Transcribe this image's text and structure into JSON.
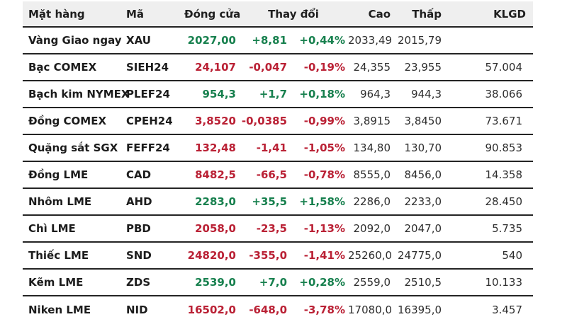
{
  "colors": {
    "up": "#17804e",
    "down": "#ba2135",
    "header_bg": "#efefef",
    "border": "#242424",
    "text": "#1f1f1f"
  },
  "table": {
    "headers": {
      "item": "Mặt hàng",
      "code": "Mã",
      "close": "Đóng cửa",
      "change": "Thay đổi",
      "high": "Cao",
      "low": "Thấp",
      "volume": "KLGD"
    },
    "rows": [
      {
        "item": "Vàng Giao ngay",
        "code": "XAU",
        "close": "2027,00",
        "change": "+8,81",
        "change_pct": "+0,44%",
        "high": "2033,49",
        "low": "2015,79",
        "volume": "",
        "direction": "up"
      },
      {
        "item": "Bạc COMEX",
        "code": "SIEH24",
        "close": "24,107",
        "change": "-0,047",
        "change_pct": "-0,19%",
        "high": "24,355",
        "low": "23,955",
        "volume": "57.004",
        "direction": "down"
      },
      {
        "item": "Bạch kim NYMEX",
        "code": "PLEF24",
        "close": "954,3",
        "change": "+1,7",
        "change_pct": "+0,18%",
        "high": "964,3",
        "low": "944,3",
        "volume": "38.066",
        "direction": "up"
      },
      {
        "item": "Đồng COMEX",
        "code": "CPEH24",
        "close": "3,8520",
        "change": "-0,0385",
        "change_pct": "-0,99%",
        "high": "3,8915",
        "low": "3,8450",
        "volume": "73.671",
        "direction": "down"
      },
      {
        "item": "Quặng sắt SGX",
        "code": "FEFF24",
        "close": "132,48",
        "change": "-1,41",
        "change_pct": "-1,05%",
        "high": "134,80",
        "low": "130,70",
        "volume": "90.853",
        "direction": "down"
      },
      {
        "item": "Đồng LME",
        "code": "CAD",
        "close": "8482,5",
        "change": "-66,5",
        "change_pct": "-0,78%",
        "high": "8555,0",
        "low": "8456,0",
        "volume": "14.358",
        "direction": "down"
      },
      {
        "item": "Nhôm LME",
        "code": "AHD",
        "close": "2283,0",
        "change": "+35,5",
        "change_pct": "+1,58%",
        "high": "2286,0",
        "low": "2233,0",
        "volume": "28.450",
        "direction": "up"
      },
      {
        "item": "Chì LME",
        "code": "PBD",
        "close": "2058,0",
        "change": "-23,5",
        "change_pct": "-1,13%",
        "high": "2092,0",
        "low": "2047,0",
        "volume": "5.735",
        "direction": "down"
      },
      {
        "item": "Thiếc LME",
        "code": "SND",
        "close": "24820,0",
        "change": "-355,0",
        "change_pct": "-1,41%",
        "high": "25260,0",
        "low": "24775,0",
        "volume": "540",
        "direction": "down"
      },
      {
        "item": "Kẽm LME",
        "code": "ZDS",
        "close": "2539,0",
        "change": "+7,0",
        "change_pct": "+0,28%",
        "high": "2559,0",
        "low": "2510,5",
        "volume": "10.133",
        "direction": "up"
      },
      {
        "item": "Niken LME",
        "code": "NID",
        "close": "16502,0",
        "change": "-648,0",
        "change_pct": "-3,78%",
        "high": "17080,0",
        "low": "16395,0",
        "volume": "3.457",
        "direction": "down"
      }
    ]
  }
}
